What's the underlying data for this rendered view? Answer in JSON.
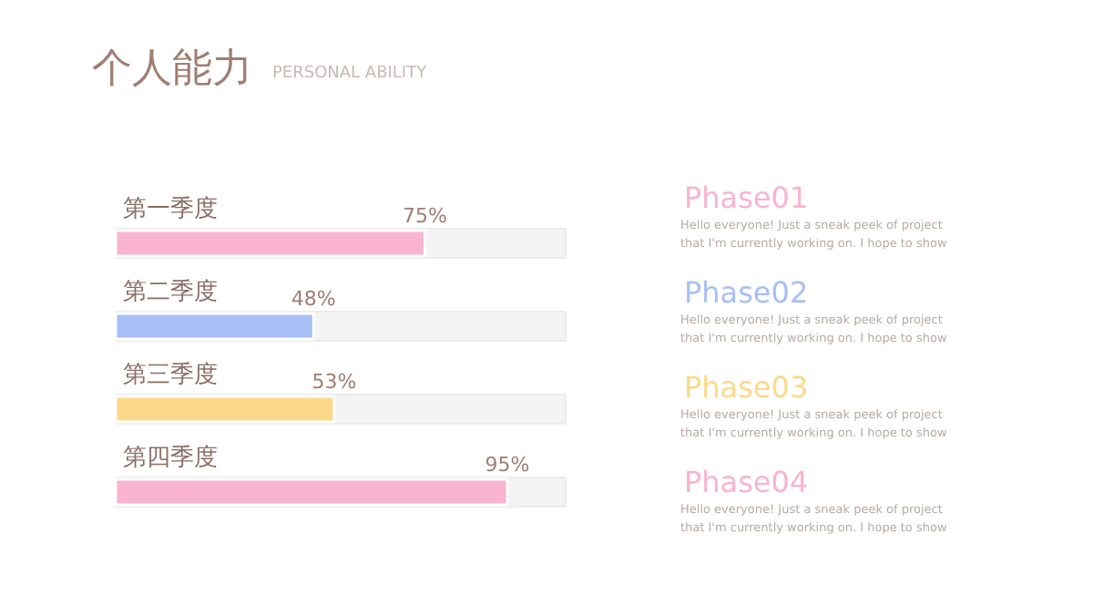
{
  "chart_data": {
    "type": "bar",
    "orientation": "horizontal",
    "title": "个人能力",
    "subtitle": "PERSONAL ABILITY",
    "categories": [
      "第一季度",
      "第二季度",
      "第三季度",
      "第四季度"
    ],
    "values": [
      75,
      48,
      53,
      95
    ],
    "value_labels": [
      "75%",
      "48%",
      "53%",
      "95%"
    ],
    "colors": [
      "#f9b4cf",
      "#a8bff5",
      "#fcd98a",
      "#f9b4cf"
    ],
    "tick_labels": "y",
    "grid": false,
    "annotations": [
      "Phase01",
      "Hello everyone! Just a sneak peek of project that I'm currently working on. I hope to show",
      "Phase02",
      "Hello everyone! Just a sneak peek of project that I'm currently working on. I hope to show",
      "Phase03",
      "Hello everyone! Just a sneak peek of project that I'm currently working on. I hope to show",
      "Phase04",
      "Hello everyone! Just a sneak peek of project that I'm currently working on. I hope to show"
    ]
  }
}
